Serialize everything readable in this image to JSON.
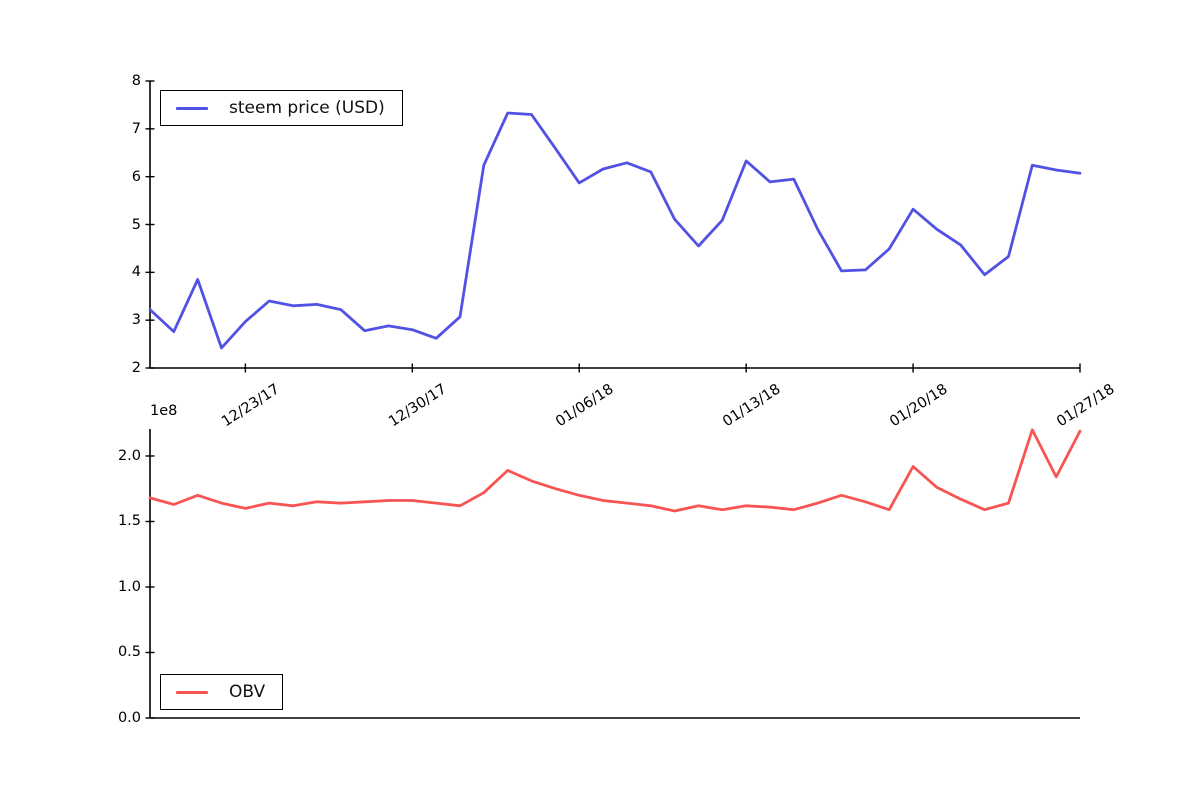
{
  "figure": {
    "background": "#ffffff",
    "axis_color": "#000000",
    "text_color": "#000000"
  },
  "chart_data": [
    {
      "type": "line",
      "legend": "steem price (USD)",
      "color": "#5152e3",
      "ylabel": "",
      "xlabel": "",
      "ylim": [
        2,
        8
      ],
      "ytick_values": [
        2,
        3,
        4,
        5,
        6,
        7,
        8
      ],
      "ytick_labels": [
        "2",
        "3",
        "4",
        "5",
        "6",
        "7",
        "8"
      ],
      "xtick_indices": [
        4,
        11,
        18,
        25,
        32,
        39
      ],
      "xtick_labels": [
        "12/23/17",
        "12/30/17",
        "01/06/18",
        "01/13/18",
        "01/20/18",
        "01/27/18"
      ],
      "x_dates": [
        "12/19/17",
        "12/20/17",
        "12/21/17",
        "12/22/17",
        "12/23/17",
        "12/24/17",
        "12/25/17",
        "12/26/17",
        "12/27/17",
        "12/28/17",
        "12/29/17",
        "12/30/17",
        "12/31/17",
        "01/01/18",
        "01/02/18",
        "01/03/18",
        "01/04/18",
        "01/05/18",
        "01/06/18",
        "01/07/18",
        "01/08/18",
        "01/09/18",
        "01/10/18",
        "01/11/18",
        "01/12/18",
        "01/13/18",
        "01/14/18",
        "01/15/18",
        "01/16/18",
        "01/17/18",
        "01/18/18",
        "01/19/18",
        "01/20/18",
        "01/21/18",
        "01/22/18",
        "01/23/18",
        "01/24/18",
        "01/25/18",
        "01/26/18",
        "01/27/18"
      ],
      "values": [
        3.22,
        2.76,
        3.85,
        2.42,
        2.97,
        3.4,
        3.3,
        3.33,
        3.22,
        2.78,
        2.88,
        2.8,
        2.62,
        3.07,
        6.24,
        7.33,
        7.3,
        6.59,
        5.87,
        6.16,
        6.29,
        6.1,
        5.11,
        4.55,
        5.09,
        6.33,
        5.89,
        5.95,
        4.9,
        4.03,
        4.05,
        4.49,
        5.32,
        4.9,
        4.57,
        3.95,
        4.33,
        6.24,
        6.14,
        6.07
      ],
      "grid": false,
      "legend_position": "upper left"
    },
    {
      "type": "line",
      "legend": "OBV",
      "color": "#f85454",
      "ylabel": "",
      "xlabel": "",
      "y_offset_label": "1e8",
      "ylim": [
        0.0,
        2.2
      ],
      "ytick_values": [
        0.0,
        0.5,
        1.0,
        1.5,
        2.0
      ],
      "ytick_labels": [
        "0.0",
        "0.5",
        "1.0",
        "1.5",
        "2.0"
      ],
      "xtick_indices": [],
      "xtick_labels": [],
      "x_dates": [
        "12/19/17",
        "12/20/17",
        "12/21/17",
        "12/22/17",
        "12/23/17",
        "12/24/17",
        "12/25/17",
        "12/26/17",
        "12/27/17",
        "12/28/17",
        "12/29/17",
        "12/30/17",
        "12/31/17",
        "01/01/18",
        "01/02/18",
        "01/03/18",
        "01/04/18",
        "01/05/18",
        "01/06/18",
        "01/07/18",
        "01/08/18",
        "01/09/18",
        "01/10/18",
        "01/11/18",
        "01/12/18",
        "01/13/18",
        "01/14/18",
        "01/15/18",
        "01/16/18",
        "01/17/18",
        "01/18/18",
        "01/19/18",
        "01/20/18",
        "01/21/18",
        "01/22/18",
        "01/23/18",
        "01/24/18",
        "01/25/18",
        "01/26/18",
        "01/27/18"
      ],
      "values": [
        1.68,
        1.63,
        1.7,
        1.64,
        1.6,
        1.64,
        1.62,
        1.65,
        1.64,
        1.65,
        1.66,
        1.66,
        1.64,
        1.62,
        1.72,
        1.89,
        1.81,
        1.75,
        1.7,
        1.66,
        1.64,
        1.62,
        1.58,
        1.62,
        1.59,
        1.62,
        1.61,
        1.59,
        1.64,
        1.7,
        1.65,
        1.59,
        1.92,
        1.76,
        1.67,
        1.59,
        1.64,
        2.2,
        1.84,
        2.19
      ],
      "values_unit": "1e8",
      "grid": false,
      "legend_position": "lower left"
    }
  ]
}
